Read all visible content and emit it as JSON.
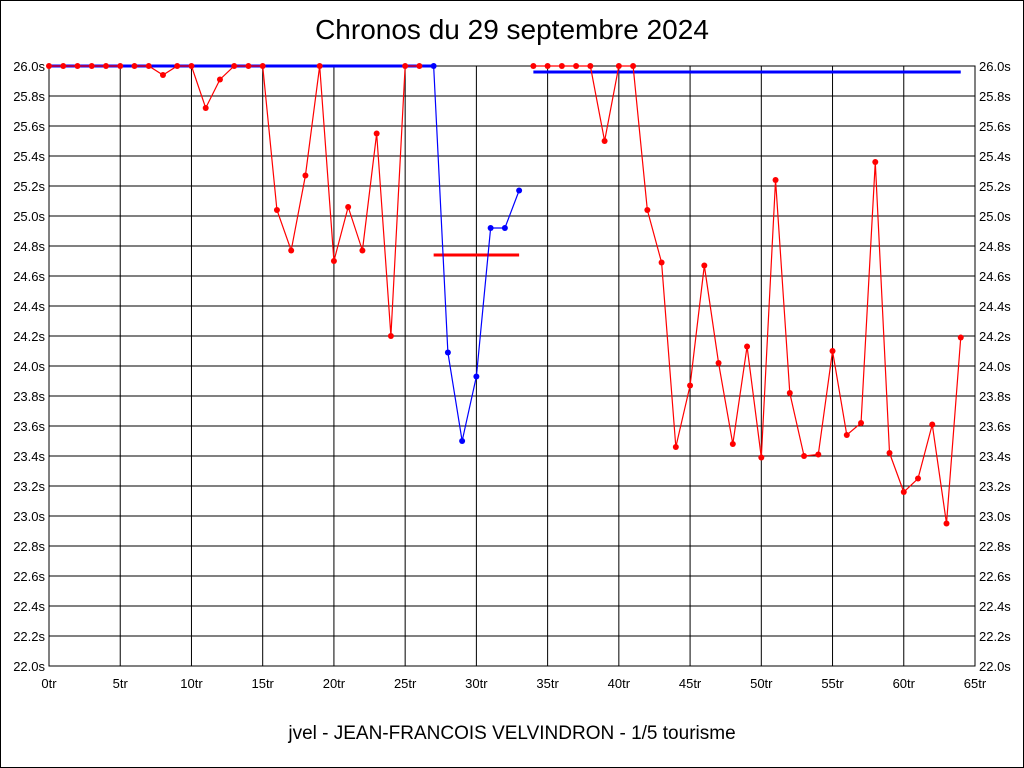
{
  "chart_data": {
    "type": "line",
    "title": "Chronos du 29 septembre 2024",
    "subtitle": "jvel - JEAN-FRANCOIS VELVINDRON - 1/5 tourisme",
    "xlim": [
      0,
      65
    ],
    "ylim": [
      22.0,
      26.0
    ],
    "x_ticks": [
      "0tr",
      "5tr",
      "10tr",
      "15tr",
      "20tr",
      "25tr",
      "30tr",
      "35tr",
      "40tr",
      "45tr",
      "50tr",
      "55tr",
      "60tr",
      "65tr"
    ],
    "y_ticks": [
      "22.0s",
      "22.2s",
      "22.4s",
      "22.6s",
      "22.8s",
      "23.0s",
      "23.2s",
      "23.4s",
      "23.6s",
      "23.8s",
      "24.0s",
      "24.2s",
      "24.4s",
      "24.6s",
      "24.8s",
      "25.0s",
      "25.2s",
      "25.4s",
      "25.6s",
      "25.8s",
      "26.0s"
    ],
    "grid": true,
    "series": [
      {
        "color": "#ff0000",
        "x": [
          0,
          1,
          2,
          3,
          4,
          5
        ],
        "y": [
          26.0,
          26.0,
          26.0,
          26.0,
          26.0,
          26.0
        ]
      },
      {
        "color": "#ff0000",
        "x": [
          6,
          7,
          8,
          9,
          10,
          11,
          12,
          13,
          14,
          15,
          16,
          17,
          18,
          19,
          20,
          21,
          22,
          23,
          24,
          25,
          26
        ],
        "y": [
          26.0,
          26.0,
          25.94,
          26.0,
          26.0,
          25.72,
          25.91,
          26.0,
          26.0,
          26.0,
          25.04,
          24.77,
          25.27,
          26.0,
          24.7,
          25.06,
          24.77,
          25.55,
          24.2,
          26.0,
          26.0
        ]
      },
      {
        "color": "#0000ff",
        "x": [
          27,
          28,
          29,
          30,
          31,
          32,
          33
        ],
        "y": [
          26.0,
          24.09,
          23.5,
          23.93,
          24.92,
          24.92,
          25.17
        ]
      },
      {
        "color": "#ff0000",
        "x": [
          34,
          35,
          36,
          37,
          38,
          39,
          40,
          41,
          42,
          43,
          44,
          45,
          46,
          47,
          48,
          49,
          50,
          51,
          52,
          53,
          54,
          55,
          56,
          57,
          58,
          59,
          60,
          61,
          62,
          63,
          64
        ],
        "y": [
          26.0,
          26.0,
          26.0,
          26.0,
          26.0,
          25.5,
          26.0,
          26.0,
          25.04,
          24.69,
          23.46,
          23.87,
          24.67,
          24.02,
          23.48,
          24.13,
          23.39,
          25.24,
          23.82,
          23.4,
          23.41,
          24.1,
          23.54,
          23.62,
          25.36,
          23.42,
          23.16,
          23.25,
          23.61,
          22.95,
          24.19
        ]
      }
    ],
    "reference_lines": [
      {
        "color": "#0000ff",
        "x": [
          0,
          27
        ],
        "y": 26.0
      },
      {
        "color": "#ff0000",
        "x": [
          27,
          33
        ],
        "y": 24.74
      },
      {
        "color": "#0000ff",
        "x": [
          34,
          64
        ],
        "y": 25.96
      }
    ]
  }
}
